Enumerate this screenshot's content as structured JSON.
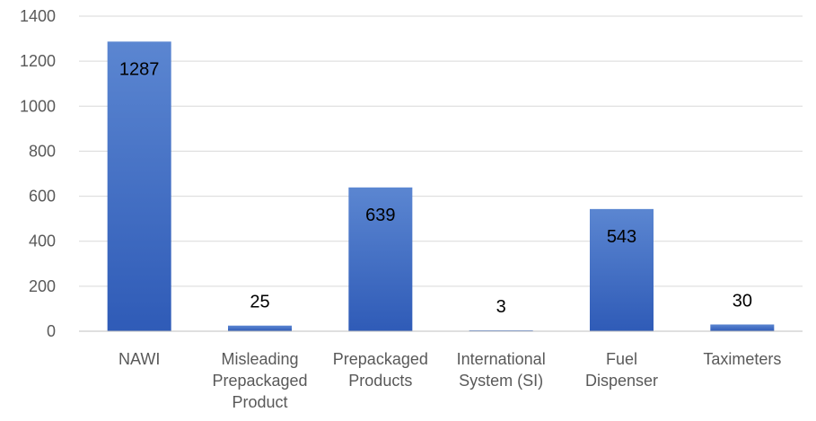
{
  "chart_data": {
    "type": "bar",
    "categories": [
      [
        "NAWI"
      ],
      [
        "Misleading",
        "Prepackaged",
        "Product"
      ],
      [
        "Prepackaged",
        "Products"
      ],
      [
        "International",
        "System (SI)"
      ],
      [
        "Fuel",
        "Dispenser"
      ],
      [
        "Taximeters"
      ]
    ],
    "values": [
      1287,
      25,
      639,
      3,
      543,
      30
    ],
    "ylim": [
      0,
      1400
    ],
    "yticks": [
      0,
      200,
      400,
      600,
      800,
      1000,
      1200,
      1400
    ],
    "grid": true,
    "legend": "none",
    "colors": {
      "bar_top": "#5b86d1",
      "bar_bottom": "#2f5bb7"
    }
  }
}
